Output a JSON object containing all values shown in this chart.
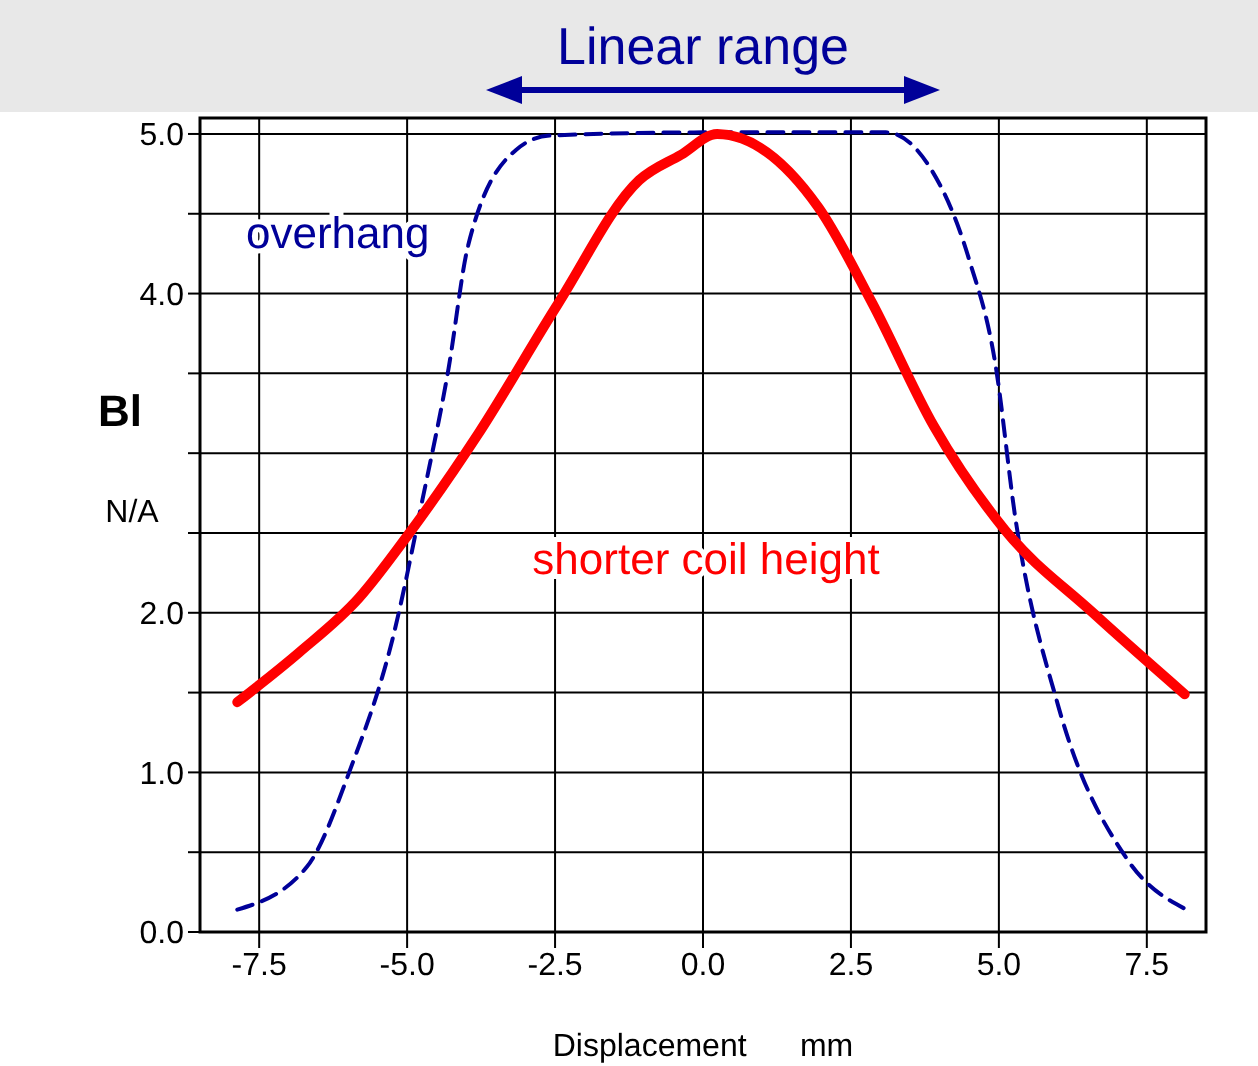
{
  "chart_data": {
    "type": "line",
    "xlabel": "Displacement      mm",
    "ylabel": "Bl\nN/A",
    "annotations": [
      "Linear range"
    ],
    "xlim": [
      -8.5,
      8.5
    ],
    "ylim": [
      0,
      5.1
    ],
    "xticks": [
      {
        "value": -7.5,
        "label": "-7.5"
      },
      {
        "value": -5,
        "label": "-5.0"
      },
      {
        "value": -2.5,
        "label": "-2.5"
      },
      {
        "value": 0,
        "label": "0.0"
      },
      {
        "value": 2.5,
        "label": "2.5"
      },
      {
        "value": 5,
        "label": "5.0"
      },
      {
        "value": 7.5,
        "label": "7.5"
      }
    ],
    "yticks": [
      {
        "value": 0,
        "label": "0.0"
      },
      {
        "value": 0.5,
        "label": null
      },
      {
        "value": 1,
        "label": "1.0"
      },
      {
        "value": 1.5,
        "label": null
      },
      {
        "value": 2,
        "label": "2.0"
      },
      {
        "value": 2.5,
        "label": null
      },
      {
        "value": 3,
        "label": null
      },
      {
        "value": 3.5,
        "label": null
      },
      {
        "value": 4,
        "label": "4.0"
      },
      {
        "value": 4.5,
        "label": null
      },
      {
        "value": 5,
        "label": "5.0"
      }
    ],
    "grid": true,
    "marker": "none",
    "series": [
      {
        "name": "overhang",
        "color": "#000099",
        "line_style": "dashed",
        "x": [
          -7.87,
          -6.69,
          -5.95,
          -5.25,
          -4.74,
          -4.3,
          -3.97,
          -3.16,
          -2.59,
          0,
          3.09,
          3.8,
          4.5,
          4.94,
          5.28,
          6.0,
          7.16,
          8.17
        ],
        "values": [
          0.14,
          0.41,
          1.03,
          1.83,
          2.71,
          3.53,
          4.3,
          4.9,
          4.99,
          5.01,
          5.01,
          4.81,
          4.21,
          3.56,
          2.59,
          1.42,
          0.46,
          0.14
        ]
      },
      {
        "name": "shorter coil height",
        "color": "#ff0000",
        "line_style": "solid",
        "x": [
          -7.87,
          -6.83,
          -5.82,
          -4.98,
          -3.8,
          -2.46,
          -1.08,
          -0.37,
          0.24,
          1.95,
          2.86,
          3.9,
          5.1,
          6.59,
          8.14
        ],
        "values": [
          1.44,
          1.75,
          2.09,
          2.49,
          3.12,
          3.93,
          4.71,
          4.87,
          5.0,
          4.54,
          3.94,
          3.17,
          2.52,
          2.0,
          1.49
        ]
      }
    ]
  }
}
